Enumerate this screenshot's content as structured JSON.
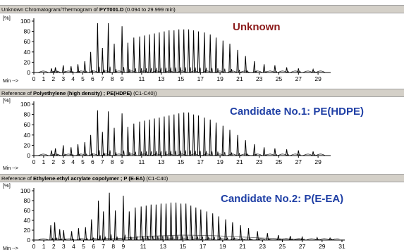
{
  "colors": {
    "annotation_unknown": "#8b1a1a",
    "annotation_candidate": "#1f3fa5",
    "trace": "#000000",
    "trace_secondary": "#808080"
  },
  "chart_data": [
    {
      "type": "line",
      "title_prefix": "Unknown Chromatogram/Thermogram of ",
      "title_bold": "PYT001.D",
      "title_suffix": " (0.094 to 29.999 min)",
      "ylabel": "[%]",
      "xlabel": "Min -->",
      "annotation": "Unknown",
      "xlim": [
        0,
        30
      ],
      "ylim": [
        0,
        100
      ],
      "xticks": [
        0,
        1,
        2,
        3,
        4,
        5,
        6,
        7,
        8,
        9,
        11,
        13,
        15,
        17,
        19,
        21,
        23,
        25,
        27,
        29
      ],
      "yticks": [
        0,
        20,
        40,
        60,
        80,
        100
      ],
      "peaks": [
        [
          1.8,
          8
        ],
        [
          2.2,
          10
        ],
        [
          3.0,
          14
        ],
        [
          3.8,
          12
        ],
        [
          4.5,
          16
        ],
        [
          5.2,
          22
        ],
        [
          5.8,
          40
        ],
        [
          6.5,
          96
        ],
        [
          7.0,
          48
        ],
        [
          7.6,
          96
        ],
        [
          8.2,
          56
        ],
        [
          9.0,
          90
        ],
        [
          9.6,
          58
        ],
        [
          10.2,
          68
        ],
        [
          10.8,
          70
        ],
        [
          11.3,
          72
        ],
        [
          11.8,
          74
        ],
        [
          12.3,
          76
        ],
        [
          12.8,
          78
        ],
        [
          13.3,
          80
        ],
        [
          13.8,
          82
        ],
        [
          14.3,
          82
        ],
        [
          14.8,
          84
        ],
        [
          15.3,
          84
        ],
        [
          15.8,
          84
        ],
        [
          16.3,
          82
        ],
        [
          16.8,
          80
        ],
        [
          17.4,
          78
        ],
        [
          18.0,
          74
        ],
        [
          18.6,
          68
        ],
        [
          19.3,
          62
        ],
        [
          20.0,
          56
        ],
        [
          20.8,
          44
        ],
        [
          21.6,
          32
        ],
        [
          22.5,
          22
        ],
        [
          23.5,
          16
        ],
        [
          24.6,
          14
        ],
        [
          25.8,
          10
        ],
        [
          27.0,
          8
        ],
        [
          28.5,
          6
        ]
      ]
    },
    {
      "type": "line",
      "title_prefix": "Reference of ",
      "title_bold": "Polyethylene (high density) ; PE(HDPE)",
      "title_suffix": "  (C1-C40))",
      "ylabel": "[%]",
      "xlabel": "Min -->",
      "annotation": "Candidate No.1: PE(HDPE)",
      "xlim": [
        0,
        30
      ],
      "ylim": [
        0,
        100
      ],
      "xticks": [
        0,
        1,
        2,
        3,
        4,
        5,
        6,
        7,
        8,
        9,
        11,
        13,
        15,
        17,
        19,
        21,
        23,
        25,
        27,
        29
      ],
      "yticks": [
        0,
        20,
        40,
        60,
        80,
        100
      ],
      "peaks": [
        [
          1.8,
          10
        ],
        [
          2.2,
          14
        ],
        [
          3.0,
          20
        ],
        [
          3.8,
          16
        ],
        [
          4.5,
          22
        ],
        [
          5.2,
          26
        ],
        [
          5.8,
          40
        ],
        [
          6.5,
          88
        ],
        [
          7.0,
          46
        ],
        [
          7.6,
          86
        ],
        [
          8.2,
          54
        ],
        [
          9.0,
          82
        ],
        [
          9.6,
          56
        ],
        [
          10.2,
          62
        ],
        [
          10.8,
          66
        ],
        [
          11.3,
          68
        ],
        [
          11.8,
          70
        ],
        [
          12.3,
          72
        ],
        [
          12.8,
          74
        ],
        [
          13.3,
          76
        ],
        [
          13.8,
          78
        ],
        [
          14.3,
          80
        ],
        [
          14.8,
          82
        ],
        [
          15.3,
          84
        ],
        [
          15.8,
          84
        ],
        [
          16.3,
          80
        ],
        [
          16.8,
          78
        ],
        [
          17.4,
          74
        ],
        [
          18.0,
          70
        ],
        [
          18.6,
          64
        ],
        [
          19.3,
          58
        ],
        [
          20.0,
          50
        ],
        [
          20.8,
          40
        ],
        [
          21.6,
          30
        ],
        [
          22.5,
          22
        ],
        [
          23.5,
          16
        ],
        [
          24.6,
          14
        ],
        [
          25.8,
          12
        ],
        [
          27.0,
          10
        ],
        [
          28.5,
          8
        ]
      ]
    },
    {
      "type": "line",
      "title_prefix": "Reference of ",
      "title_bold": "Ethylene-ethyl acrylate copolymer ; P (E-EA)",
      "title_suffix": "  (C1-C40)",
      "ylabel": "[%]",
      "xlabel": "Min -->",
      "annotation": "Candidate No.2: P(E-EA)",
      "xlim": [
        0,
        31
      ],
      "ylim": [
        0,
        100
      ],
      "xticks": [
        0,
        1,
        2,
        3,
        4,
        5,
        6,
        7,
        8,
        9,
        11,
        13,
        15,
        17,
        19,
        21,
        23,
        25,
        27,
        29,
        31
      ],
      "yticks": [
        0,
        20,
        40,
        60,
        80,
        100
      ],
      "peaks": [
        [
          1.7,
          30
        ],
        [
          2.1,
          36
        ],
        [
          2.6,
          22
        ],
        [
          3.0,
          20
        ],
        [
          3.8,
          18
        ],
        [
          4.5,
          24
        ],
        [
          5.2,
          26
        ],
        [
          5.8,
          42
        ],
        [
          6.5,
          80
        ],
        [
          7.0,
          58
        ],
        [
          7.6,
          96
        ],
        [
          8.2,
          60
        ],
        [
          9.0,
          90
        ],
        [
          9.6,
          58
        ],
        [
          10.2,
          66
        ],
        [
          10.8,
          68
        ],
        [
          11.3,
          70
        ],
        [
          11.8,
          72
        ],
        [
          12.3,
          72
        ],
        [
          12.8,
          74
        ],
        [
          13.3,
          74
        ],
        [
          13.8,
          76
        ],
        [
          14.3,
          76
        ],
        [
          14.8,
          74
        ],
        [
          15.3,
          74
        ],
        [
          15.8,
          70
        ],
        [
          16.3,
          66
        ],
        [
          16.8,
          62
        ],
        [
          17.4,
          58
        ],
        [
          18.0,
          54
        ],
        [
          18.6,
          48
        ],
        [
          19.3,
          42
        ],
        [
          20.0,
          36
        ],
        [
          20.8,
          30
        ],
        [
          21.6,
          24
        ],
        [
          22.5,
          18
        ],
        [
          23.5,
          14
        ],
        [
          24.6,
          10
        ],
        [
          25.8,
          8
        ],
        [
          27.0,
          6
        ],
        [
          28.5,
          5
        ],
        [
          29.8,
          4
        ]
      ],
      "secondary_hump": [
        [
          6,
          2
        ],
        [
          9,
          4
        ],
        [
          12,
          8
        ],
        [
          15,
          10
        ],
        [
          18,
          9
        ],
        [
          21,
          6
        ],
        [
          24,
          3
        ],
        [
          27,
          1
        ]
      ]
    }
  ]
}
